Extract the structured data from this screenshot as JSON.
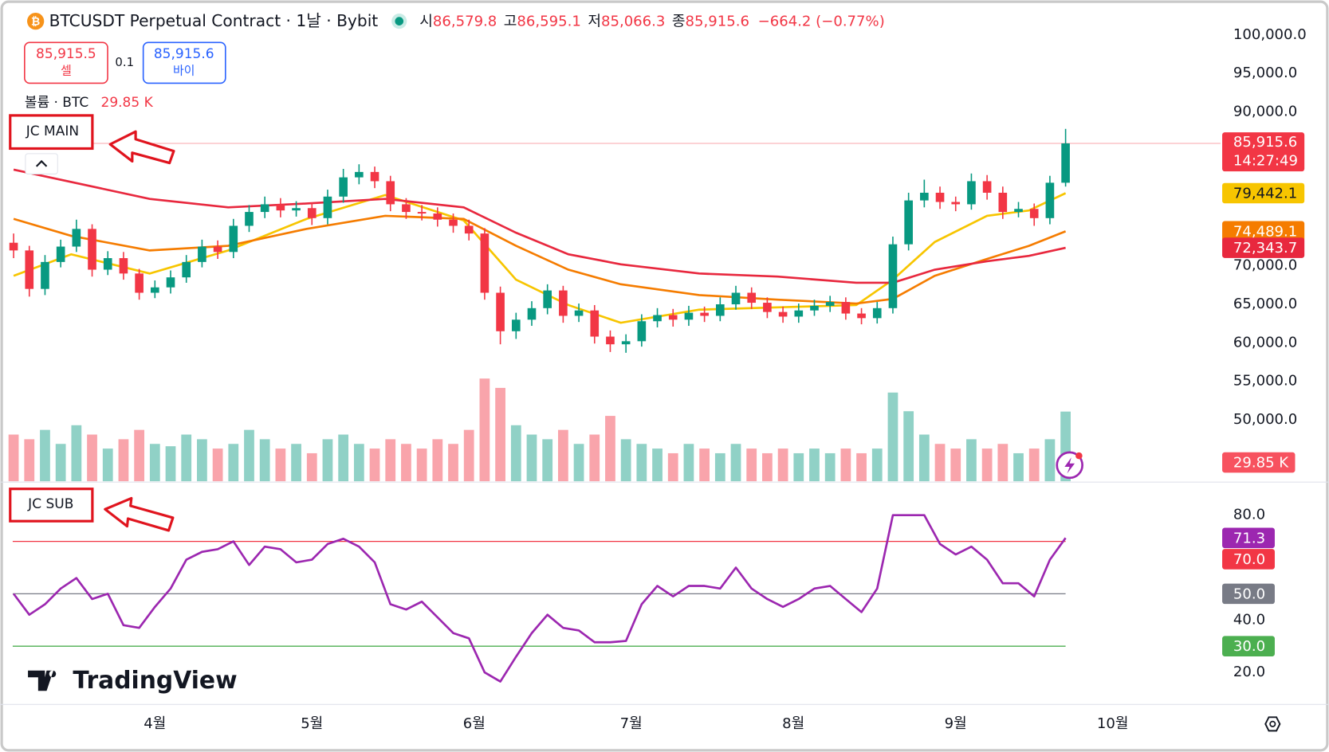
{
  "header": {
    "title": "BTCUSDT Perpetual Contract · 1날 · Bybit",
    "open_label": "시",
    "open": "86,579.8",
    "high_label": "고",
    "high": "86,595.1",
    "low_label": "저",
    "low": "85,066.3",
    "close_label": "종",
    "close": "85,915.6",
    "change": "−664.2 (−0.77%)"
  },
  "order": {
    "sell_price": "85,915.5",
    "sell_label": "셀",
    "quantity": "0.1",
    "buy_price": "85,915.6",
    "buy_label": "바이"
  },
  "volume_legend": "볼륨 · BTC",
  "annotations": [
    "JC MAIN",
    "JC SUB"
  ],
  "logo": "TradingView",
  "chart_data": [
    {
      "type": "candlestick",
      "x": [
        4,
        7,
        10,
        13,
        16,
        19,
        22,
        25,
        28,
        31,
        34,
        37,
        40,
        43,
        46,
        49,
        52,
        55,
        58,
        61,
        64,
        67,
        70,
        73,
        76,
        79,
        82,
        85,
        88,
        91,
        94,
        97,
        100,
        103,
        106,
        109,
        112,
        115,
        118,
        121,
        124,
        127,
        130,
        133,
        136,
        139,
        142,
        145,
        148,
        151,
        154,
        157,
        160,
        163,
        166,
        169,
        172,
        175,
        178,
        181,
        184,
        187,
        190,
        193,
        196,
        199,
        202,
        205
      ],
      "ohlc": [
        [
          73000,
          74200,
          71000,
          72000
        ],
        [
          72000,
          72600,
          66000,
          67000
        ],
        [
          67000,
          71400,
          66200,
          70500
        ],
        [
          70500,
          73400,
          69800,
          72500
        ],
        [
          72500,
          76000,
          71800,
          74800
        ],
        [
          74800,
          75400,
          68600,
          69500
        ],
        [
          69500,
          71900,
          68800,
          71000
        ],
        [
          71000,
          71800,
          68200,
          69000
        ],
        [
          69000,
          69600,
          65600,
          66500
        ],
        [
          66500,
          68100,
          65800,
          67200
        ],
        [
          67200,
          69400,
          66400,
          68500
        ],
        [
          68500,
          71400,
          67800,
          70500
        ],
        [
          70500,
          73400,
          69800,
          72500
        ],
        [
          72500,
          73300,
          70900,
          71800
        ],
        [
          71800,
          76100,
          71000,
          75200
        ],
        [
          75200,
          77900,
          74400,
          77000
        ],
        [
          77000,
          79000,
          76200,
          78000
        ],
        [
          78000,
          78800,
          76300,
          77200
        ],
        [
          77200,
          78400,
          76400,
          77500
        ],
        [
          77500,
          78200,
          75300,
          76200
        ],
        [
          76200,
          79900,
          75400,
          79000
        ],
        [
          79000,
          82600,
          78200,
          81500
        ],
        [
          81500,
          83200,
          80600,
          82200
        ],
        [
          82200,
          82900,
          80100,
          81000
        ],
        [
          81000,
          81700,
          77100,
          78000
        ],
        [
          78000,
          78800,
          76100,
          77000
        ],
        [
          77000,
          77900,
          75900,
          76800
        ],
        [
          76800,
          77600,
          75100,
          76000
        ],
        [
          76000,
          76800,
          74300,
          75200
        ],
        [
          75200,
          76000,
          73300,
          74200
        ],
        [
          74200,
          74900,
          65600,
          66500
        ],
        [
          66500,
          67300,
          59800,
          61500
        ],
        [
          61500,
          63900,
          60500,
          63000
        ],
        [
          63000,
          65400,
          62200,
          64500
        ],
        [
          64500,
          67600,
          63700,
          66800
        ],
        [
          66800,
          67400,
          62600,
          63500
        ],
        [
          63500,
          65100,
          62700,
          64200
        ],
        [
          64200,
          64900,
          59900,
          60800
        ],
        [
          60800,
          61600,
          58800,
          59800
        ],
        [
          59800,
          61100,
          58700,
          60200
        ],
        [
          60200,
          63700,
          59500,
          62800
        ],
        [
          62800,
          64500,
          62000,
          63600
        ],
        [
          63600,
          64400,
          62100,
          63000
        ],
        [
          63000,
          64800,
          62200,
          63900
        ],
        [
          63900,
          64700,
          62700,
          63500
        ],
        [
          63500,
          65900,
          62800,
          65000
        ],
        [
          65000,
          67400,
          64300,
          66500
        ],
        [
          66500,
          67200,
          64400,
          65200
        ],
        [
          65200,
          65900,
          63200,
          64000
        ],
        [
          64000,
          64700,
          62600,
          63400
        ],
        [
          63400,
          65100,
          62600,
          64200
        ],
        [
          64200,
          65600,
          63500,
          64800
        ],
        [
          64800,
          66100,
          64000,
          65300
        ],
        [
          65300,
          65900,
          63000,
          63800
        ],
        [
          63800,
          64500,
          62400,
          63200
        ],
        [
          63200,
          65300,
          62500,
          64500
        ],
        [
          64500,
          73800,
          63800,
          72800
        ],
        [
          72800,
          79500,
          72000,
          78500
        ],
        [
          78500,
          81200,
          77600,
          79500
        ],
        [
          79500,
          80300,
          77400,
          78300
        ],
        [
          78300,
          79000,
          77100,
          78000
        ],
        [
          78000,
          82000,
          77300,
          81000
        ],
        [
          81000,
          81800,
          78600,
          79500
        ],
        [
          79500,
          80300,
          76100,
          77000
        ],
        [
          77000,
          78300,
          76300,
          77400
        ],
        [
          77400,
          78100,
          75200,
          76200
        ],
        [
          76200,
          81700,
          75400,
          80800
        ],
        [
          80800,
          87800,
          80300,
          85915.6
        ]
      ],
      "up_color": "#089981",
      "down_color": "#f23645",
      "last_label": "85,915.6",
      "countdown": "14:27:49",
      "volume": [
        20,
        18,
        22,
        16,
        24,
        20,
        14,
        18,
        22,
        16,
        15,
        20,
        18,
        14,
        16,
        22,
        18,
        14,
        16,
        12,
        18,
        20,
        16,
        14,
        18,
        16,
        14,
        18,
        16,
        22,
        44,
        40,
        24,
        20,
        18,
        22,
        16,
        20,
        28,
        18,
        16,
        14,
        12,
        16,
        14,
        12,
        16,
        14,
        12,
        14,
        12,
        14,
        12,
        14,
        12,
        14,
        38,
        30,
        20,
        16,
        14,
        18,
        14,
        16,
        12,
        14,
        18,
        29.85
      ],
      "volume_ylim": [
        0,
        100
      ],
      "volume_last_label": "29.85 K",
      "ma_x": [
        4,
        15,
        30,
        45,
        60,
        75,
        90,
        100,
        110,
        120,
        135,
        150,
        165,
        172,
        180,
        190,
        198,
        205
      ],
      "ma_series": [
        {
          "color": "#f7c500",
          "values": [
            68700,
            71500,
            69000,
            72000,
            76100,
            79200,
            75900,
            68200,
            64900,
            62600,
            64300,
            64600,
            64900,
            68200,
            73100,
            76500,
            77200,
            79442.1
          ],
          "value_label": "79,442.1"
        },
        {
          "color": "#f57c00",
          "values": [
            76100,
            73900,
            72000,
            72600,
            74800,
            76500,
            76100,
            72600,
            69500,
            67600,
            66200,
            65600,
            65100,
            65700,
            68700,
            70900,
            72600,
            74489.1
          ],
          "value_label": "74,489.1"
        },
        {
          "color": "#e8283e",
          "values": [
            82500,
            80900,
            78700,
            77600,
            78100,
            78700,
            77600,
            74300,
            71500,
            70200,
            69000,
            68600,
            67800,
            67800,
            69500,
            70600,
            71300,
            72343.7
          ],
          "value_label": "72,343.7"
        }
      ],
      "xlim": [
        1.4,
        234.6
      ],
      "xticks": [
        {
          "value": 31,
          "label": "4월"
        },
        {
          "value": 61,
          "label": "5월"
        },
        {
          "value": 92,
          "label": "6월"
        },
        {
          "value": 122,
          "label": "7월"
        },
        {
          "value": 153,
          "label": "8월"
        },
        {
          "value": 184,
          "label": "9월"
        },
        {
          "value": 214,
          "label": "10월"
        }
      ],
      "ylim": [
        42000,
        104000
      ],
      "yticks": [
        {
          "value": 100000,
          "label": "100,000.0"
        },
        {
          "value": 95000,
          "label": "95,000.0"
        },
        {
          "value": 90000,
          "label": "90,000.0"
        },
        {
          "value": 70000,
          "label": "70,000.0"
        },
        {
          "value": 65000,
          "label": "65,000.0"
        },
        {
          "value": 60000,
          "label": "60,000.0"
        },
        {
          "value": 55000,
          "label": "55,000.0"
        },
        {
          "value": 50000,
          "label": "50,000.0"
        }
      ]
    },
    {
      "type": "line",
      "color": "#9c27b0",
      "x": [
        4,
        7,
        10,
        13,
        16,
        19,
        22,
        25,
        28,
        31,
        34,
        37,
        40,
        43,
        46,
        49,
        52,
        55,
        58,
        61,
        64,
        67,
        70,
        73,
        76,
        79,
        82,
        85,
        88,
        91,
        94,
        97,
        100,
        103,
        106,
        109,
        112,
        115,
        118,
        121,
        124,
        127,
        130,
        133,
        136,
        139,
        142,
        145,
        148,
        151,
        154,
        157,
        160,
        163,
        166,
        169,
        172,
        175,
        178,
        181,
        184,
        187,
        190,
        193,
        196,
        199,
        202,
        205
      ],
      "values": [
        50,
        42,
        46,
        52,
        56,
        48,
        50,
        38,
        37,
        45,
        52,
        63,
        66,
        67,
        70,
        61,
        68,
        67,
        62,
        63,
        69,
        71,
        68,
        62,
        46,
        44,
        47,
        41,
        35,
        33,
        20,
        16.5,
        26,
        35,
        42,
        37,
        36,
        31.5,
        31.5,
        32,
        46,
        53,
        49,
        53,
        53,
        52,
        60,
        52,
        48,
        45,
        48,
        52,
        53,
        48,
        43,
        52,
        80,
        80,
        80,
        69,
        65,
        68,
        63,
        54,
        54,
        49,
        63,
        71.3
      ],
      "last_label": "71.3",
      "levels": [
        {
          "value": 70,
          "label": "70.0"
        },
        {
          "value": 50,
          "label": "50.0"
        },
        {
          "value": 30,
          "label": "30.0"
        }
      ],
      "level_colors": [
        "#f23645",
        "#787b86",
        "#4caf50"
      ],
      "ylim": [
        11,
        91
      ],
      "yticks": [
        {
          "value": 80,
          "label": "80.0"
        },
        {
          "value": 40,
          "label": "40.0"
        },
        {
          "value": 20,
          "label": "20.0"
        }
      ]
    }
  ]
}
